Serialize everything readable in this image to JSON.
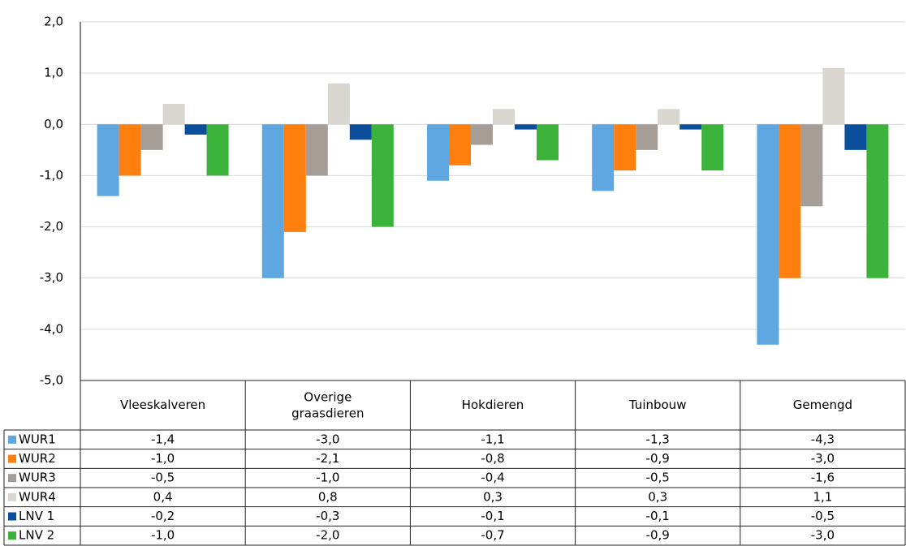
{
  "chart_data": {
    "type": "bar",
    "categories": [
      "Vleeskalveren",
      "Overige graasdieren",
      "Hokdieren",
      "Tuinbouw",
      "Gemengd"
    ],
    "series": [
      {
        "name": "WUR1",
        "color": "#5ea7e0",
        "values": [
          -1.4,
          -3.0,
          -1.1,
          -1.3,
          -4.3
        ],
        "value_labels": [
          "-1,4",
          "-3,0",
          "-1,1",
          "-1,3",
          "-4,3"
        ]
      },
      {
        "name": "WUR2",
        "color": "#ff7f0e",
        "values": [
          -1.0,
          -2.1,
          -0.8,
          -0.9,
          -3.0
        ],
        "value_labels": [
          "-1,0",
          "-2,1",
          "-0,8",
          "-0,9",
          "-3,0"
        ]
      },
      {
        "name": "WUR3",
        "color": "#a69d96",
        "values": [
          -0.5,
          -1.0,
          -0.4,
          -0.5,
          -1.6
        ],
        "value_labels": [
          "-0,5",
          "-1,0",
          "-0,4",
          "-0,5",
          "-1,6"
        ]
      },
      {
        "name": "WUR4",
        "color": "#d9d6cf",
        "values": [
          0.4,
          0.8,
          0.3,
          0.3,
          1.1
        ],
        "value_labels": [
          "0,4",
          "0,8",
          "0,3",
          "0,3",
          "1,1"
        ]
      },
      {
        "name": "LNV 1",
        "color": "#0b4f9c",
        "values": [
          -0.2,
          -0.3,
          -0.1,
          -0.1,
          -0.5
        ],
        "value_labels": [
          "-0,2",
          "-0,3",
          "-0,1",
          "-0,1",
          "-0,5"
        ]
      },
      {
        "name": "LNV 2",
        "color": "#3bb33b",
        "values": [
          -1.0,
          -2.0,
          -0.7,
          -0.9,
          -3.0
        ],
        "value_labels": [
          "-1,0",
          "-2,0",
          "-0,7",
          "-0,9",
          "-3,0"
        ]
      }
    ],
    "ylim": [
      -5,
      2
    ],
    "yticks": [
      {
        "value": -5,
        "label": "-5,0"
      },
      {
        "value": -4,
        "label": "-4,0"
      },
      {
        "value": -3,
        "label": "-3,0"
      },
      {
        "value": -2,
        "label": "-2,0"
      },
      {
        "value": -1,
        "label": "-1,0"
      },
      {
        "value": 0,
        "label": "0,0"
      },
      {
        "value": 1,
        "label": "1,0"
      },
      {
        "value": 2,
        "label": "2,0"
      }
    ],
    "grid": true
  }
}
